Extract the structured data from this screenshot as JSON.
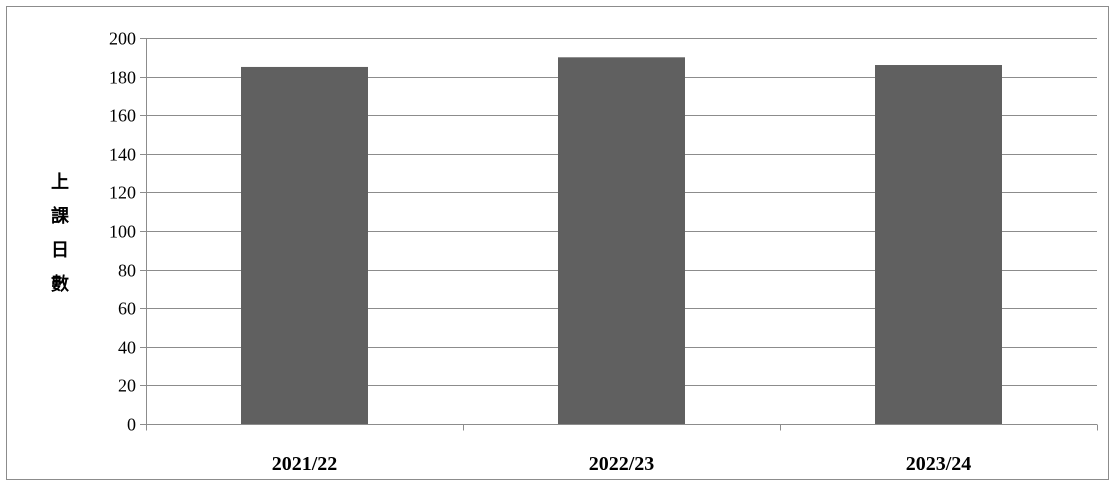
{
  "chart_data": {
    "type": "bar",
    "title": "",
    "xlabel": "",
    "ylabel": "上課日數",
    "categories": [
      "2021/22",
      "2022/23",
      "2023/24"
    ],
    "values": [
      185,
      190,
      186
    ],
    "ylim": [
      0,
      200
    ],
    "yticks": [
      "0",
      "20",
      "40",
      "60",
      "80",
      "100",
      "120",
      "140",
      "160",
      "180",
      "200"
    ],
    "grid": true,
    "legend": "none",
    "bar_color": "#606060",
    "grid_color": "#8c8c8c"
  }
}
